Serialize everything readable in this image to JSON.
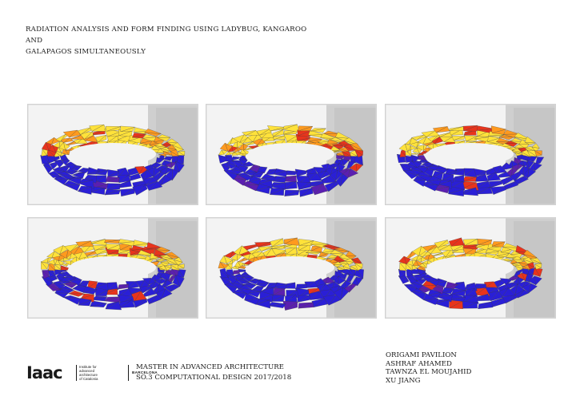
{
  "title": {
    "line1": "RADIATION ANALYSIS AND FORM FINDING USING LADYBUG, KANGAROO AND",
    "line2": "GALAPAGOS SIMULTANEOUSLY"
  },
  "panels": [
    {
      "name": "iteration-1"
    },
    {
      "name": "iteration-2"
    },
    {
      "name": "iteration-3"
    },
    {
      "name": "iteration-4"
    },
    {
      "name": "iteration-5"
    },
    {
      "name": "iteration-6"
    }
  ],
  "colors": {
    "mesh_low": "#2a1fd6",
    "mesh_mid": "#e8341c",
    "mesh_high": "#ffe23a",
    "background_panel": "#f3f3f3"
  },
  "footer": {
    "logo_word": "Iaac",
    "logo_institute": [
      "Institute for",
      "advanced",
      "architecture",
      "of Catalonia"
    ],
    "logo_city": "BARCELONA",
    "program_line1": "MASTER IN ADVANCED ARCHITECTURE",
    "program_line2": "SO.3 COMPUTATIONAL DESIGN 2017/2018"
  },
  "credits": {
    "project": "ORIGAMI PAVILION",
    "authors": [
      "ASHRAF AHAMED",
      "TAWNZA EL MOUJAHID",
      "XU JIANG"
    ]
  }
}
